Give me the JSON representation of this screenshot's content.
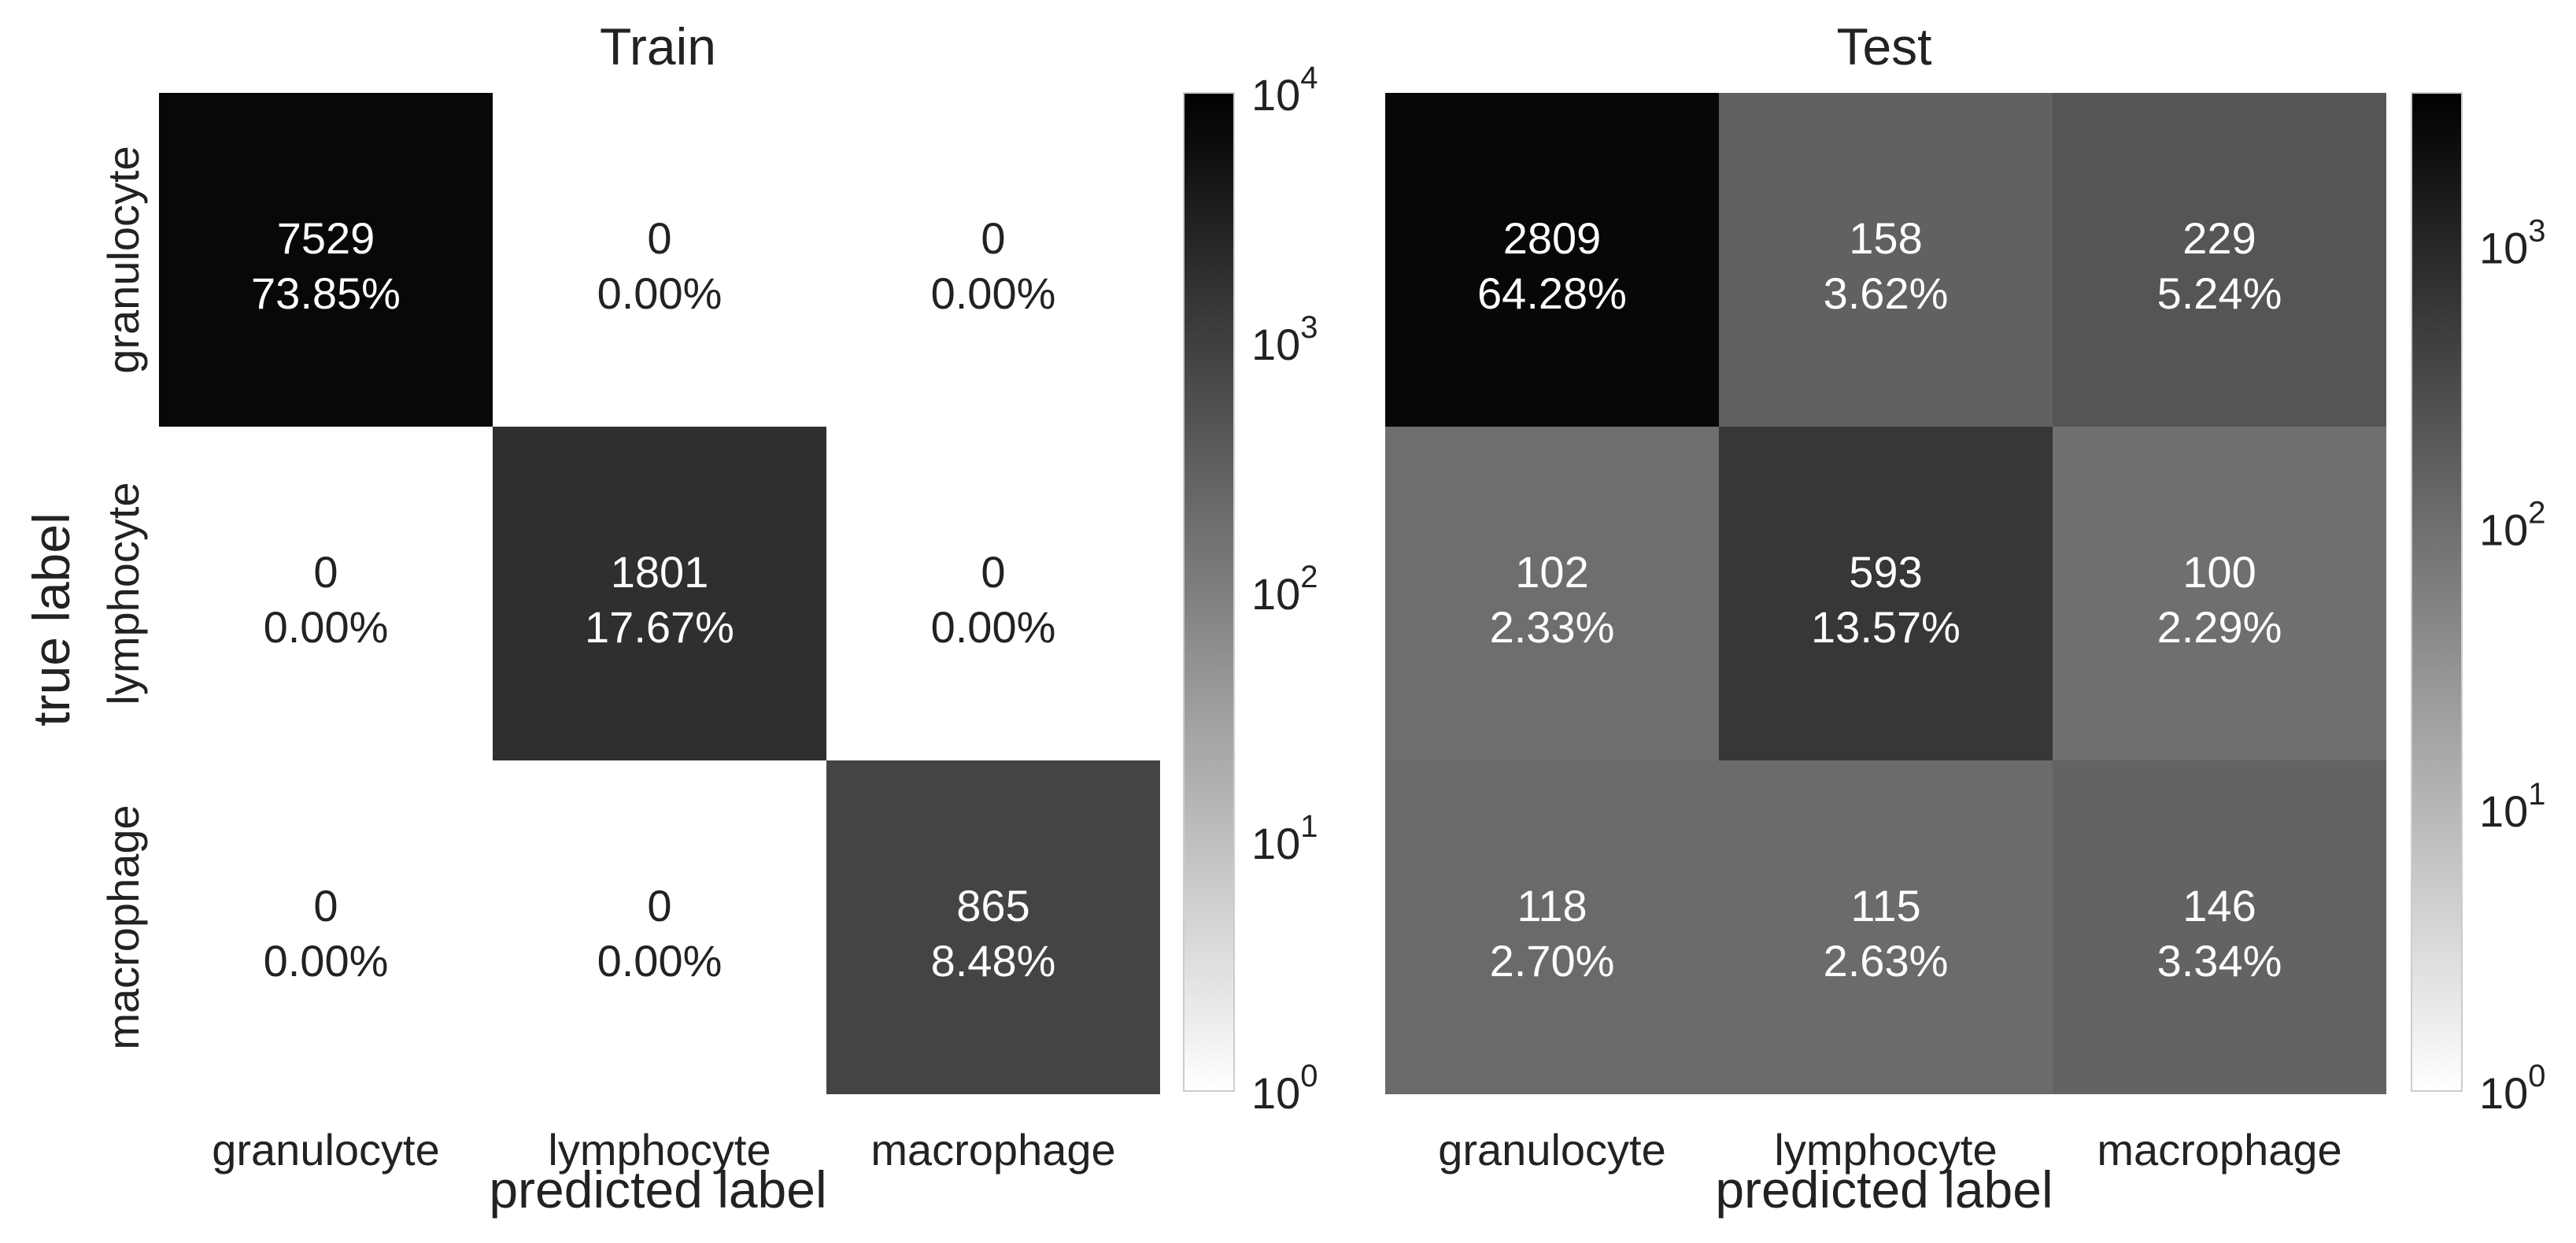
{
  "chart_data": [
    {
      "type": "heatmap",
      "title": "Train",
      "xlabel": "predicted label",
      "ylabel": "true label",
      "x_categories": [
        "granulocyte",
        "lymphocyte",
        "macrophage"
      ],
      "y_categories": [
        "granulocyte",
        "lymphocyte",
        "macrophage"
      ],
      "counts": [
        [
          7529,
          0,
          0
        ],
        [
          0,
          1801,
          0
        ],
        [
          0,
          0,
          865
        ]
      ],
      "percents": [
        [
          "73.85%",
          "0.00%",
          "0.00%"
        ],
        [
          "0.00%",
          "17.67%",
          "0.00%"
        ],
        [
          "0.00%",
          "0.00%",
          "8.48%"
        ]
      ],
      "colorscale": "log",
      "color_range": [
        1,
        10000
      ],
      "colorbar_ticks": [
        1,
        10,
        100,
        1000,
        10000
      ],
      "colorbar_mantissa": "10",
      "colorbar_exponents": [
        "0",
        "1",
        "2",
        "3",
        "4"
      ]
    },
    {
      "type": "heatmap",
      "title": "Test",
      "xlabel": "predicted label",
      "ylabel": "",
      "x_categories": [
        "granulocyte",
        "lymphocyte",
        "macrophage"
      ],
      "y_categories": [],
      "counts": [
        [
          2809,
          158,
          229
        ],
        [
          102,
          593,
          100
        ],
        [
          118,
          115,
          146
        ]
      ],
      "percents": [
        [
          "64.28%",
          "3.62%",
          "5.24%"
        ],
        [
          "2.33%",
          "13.57%",
          "2.29%"
        ],
        [
          "2.70%",
          "2.63%",
          "3.34%"
        ]
      ],
      "colorscale": "log",
      "color_range": [
        1,
        3500
      ],
      "colorbar_ticks": [
        1,
        10,
        100,
        1000
      ],
      "colorbar_mantissa": "10",
      "colorbar_exponents": [
        "0",
        "1",
        "2",
        "3"
      ]
    }
  ]
}
